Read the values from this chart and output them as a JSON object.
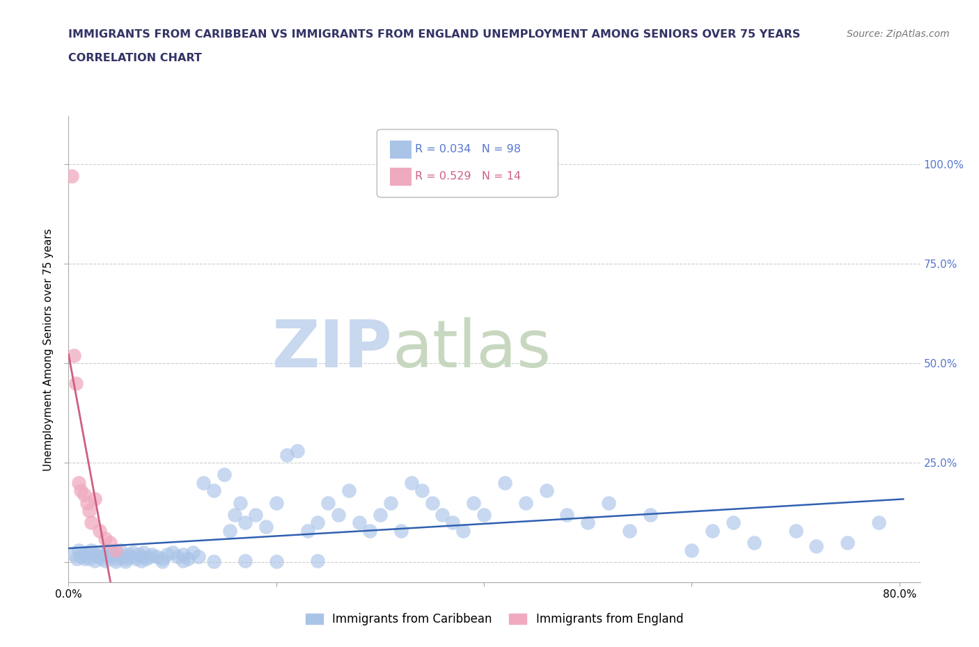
{
  "title_line1": "IMMIGRANTS FROM CARIBBEAN VS IMMIGRANTS FROM ENGLAND UNEMPLOYMENT AMONG SENIORS OVER 75 YEARS",
  "title_line2": "CORRELATION CHART",
  "source_text": "Source: ZipAtlas.com",
  "ylabel": "Unemployment Among Seniors over 75 years",
  "watermark_zip": "ZIP",
  "watermark_atlas": "atlas",
  "color_caribbean": "#aac4e8",
  "color_england": "#f0aabf",
  "color_line_caribbean": "#3060b0",
  "color_line_england": "#d06080",
  "color_title": "#333366",
  "color_right_axis": "#5577cc",
  "color_source": "#777777",
  "color_grid": "#cccccc",
  "color_spine": "#aaaaaa",
  "xlim_min": 0.0,
  "xlim_max": 0.82,
  "ylim_min": -0.05,
  "ylim_max": 1.12,
  "ytick_vals": [
    0.0,
    0.25,
    0.5,
    0.75,
    1.0
  ],
  "ytick_right_labels": [
    "",
    "25.0%",
    "50.0%",
    "75.0%",
    "100.0%"
  ],
  "xtick_vals": [
    0.0,
    0.2,
    0.4,
    0.6,
    0.8
  ],
  "blue_x": [
    0.005,
    0.008,
    0.01,
    0.012,
    0.015,
    0.018,
    0.02,
    0.022,
    0.025,
    0.028,
    0.03,
    0.032,
    0.035,
    0.038,
    0.04,
    0.042,
    0.045,
    0.048,
    0.05,
    0.052,
    0.055,
    0.058,
    0.06,
    0.062,
    0.065,
    0.068,
    0.07,
    0.072,
    0.075,
    0.078,
    0.08,
    0.085,
    0.09,
    0.095,
    0.1,
    0.105,
    0.11,
    0.115,
    0.12,
    0.125,
    0.13,
    0.14,
    0.15,
    0.155,
    0.16,
    0.165,
    0.17,
    0.18,
    0.19,
    0.2,
    0.21,
    0.22,
    0.23,
    0.24,
    0.25,
    0.26,
    0.27,
    0.28,
    0.29,
    0.3,
    0.31,
    0.32,
    0.33,
    0.34,
    0.35,
    0.36,
    0.37,
    0.38,
    0.39,
    0.4,
    0.42,
    0.44,
    0.46,
    0.48,
    0.5,
    0.52,
    0.54,
    0.56,
    0.6,
    0.62,
    0.64,
    0.66,
    0.7,
    0.72,
    0.75,
    0.78,
    0.015,
    0.025,
    0.035,
    0.045,
    0.055,
    0.07,
    0.09,
    0.11,
    0.14,
    0.17,
    0.2,
    0.24
  ],
  "blue_y": [
    0.02,
    0.01,
    0.03,
    0.015,
    0.02,
    0.025,
    0.01,
    0.03,
    0.02,
    0.015,
    0.025,
    0.01,
    0.02,
    0.03,
    0.015,
    0.025,
    0.01,
    0.02,
    0.03,
    0.015,
    0.01,
    0.02,
    0.015,
    0.025,
    0.01,
    0.02,
    0.015,
    0.025,
    0.01,
    0.015,
    0.02,
    0.015,
    0.01,
    0.02,
    0.025,
    0.015,
    0.02,
    0.01,
    0.025,
    0.015,
    0.2,
    0.18,
    0.22,
    0.08,
    0.12,
    0.15,
    0.1,
    0.12,
    0.09,
    0.15,
    0.27,
    0.28,
    0.08,
    0.1,
    0.15,
    0.12,
    0.18,
    0.1,
    0.08,
    0.12,
    0.15,
    0.08,
    0.2,
    0.18,
    0.15,
    0.12,
    0.1,
    0.08,
    0.15,
    0.12,
    0.2,
    0.15,
    0.18,
    0.12,
    0.1,
    0.15,
    0.08,
    0.12,
    0.03,
    0.08,
    0.1,
    0.05,
    0.08,
    0.04,
    0.05,
    0.1,
    0.01,
    0.005,
    0.005,
    0.003,
    0.002,
    0.004,
    0.003,
    0.005,
    0.003,
    0.004,
    0.003,
    0.005
  ],
  "pink_x": [
    0.003,
    0.005,
    0.007,
    0.01,
    0.012,
    0.015,
    0.018,
    0.02,
    0.022,
    0.025,
    0.03,
    0.035,
    0.04,
    0.045
  ],
  "pink_y": [
    0.97,
    0.52,
    0.45,
    0.2,
    0.18,
    0.17,
    0.15,
    0.13,
    0.1,
    0.16,
    0.08,
    0.06,
    0.05,
    0.03
  ]
}
